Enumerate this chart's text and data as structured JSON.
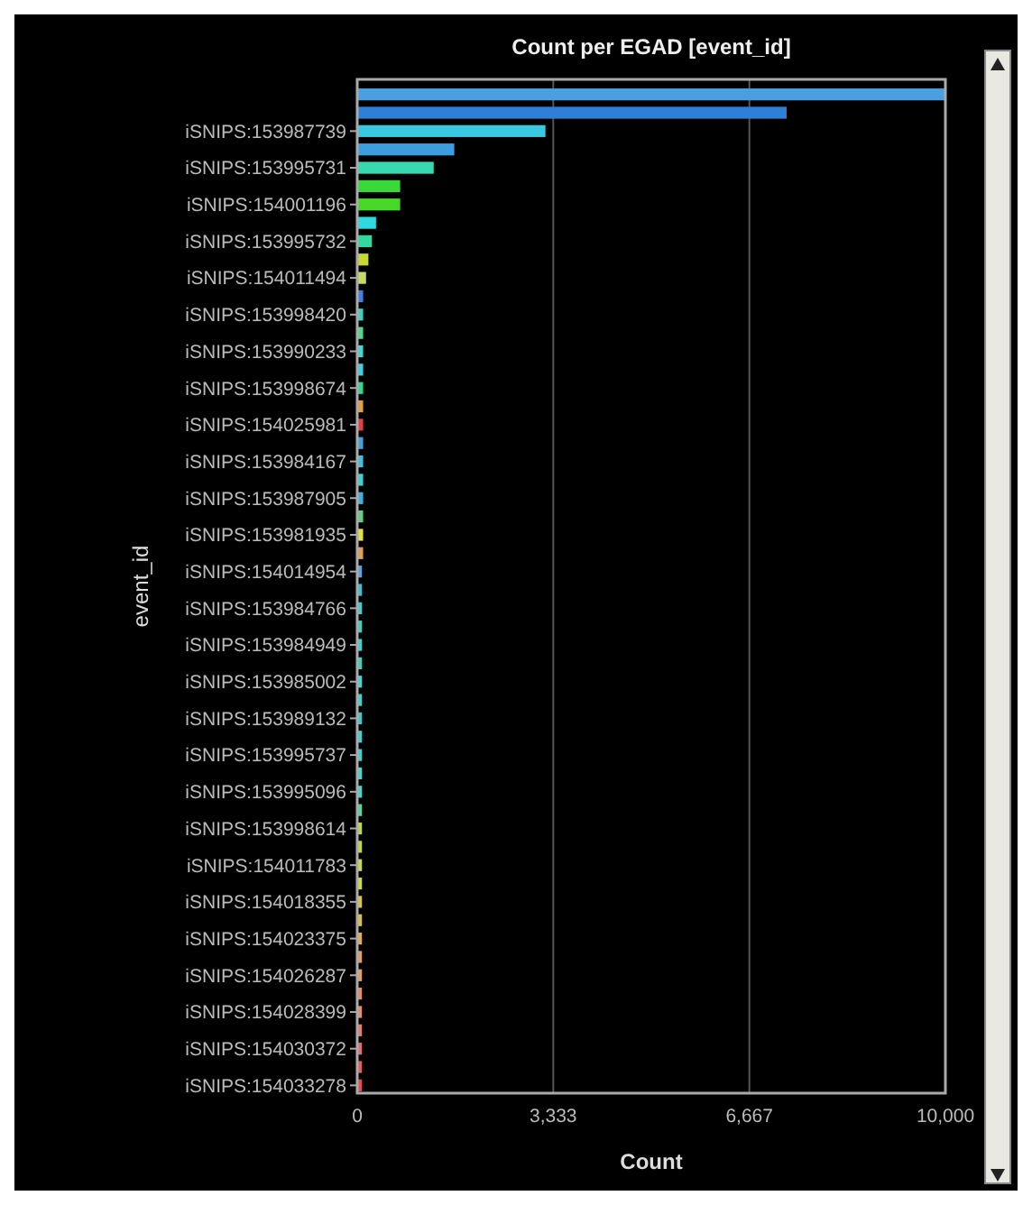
{
  "chart_data": {
    "type": "bar",
    "orientation": "horizontal",
    "title": "Count per EGAD [event_id]",
    "xlabel": "Count",
    "ylabel": "event_id",
    "categories": [
      null,
      null,
      "iSNIPS:153987739",
      null,
      "iSNIPS:153995731",
      null,
      "iSNIPS:154001196",
      null,
      "iSNIPS:153995732",
      null,
      "iSNIPS:154011494",
      null,
      "iSNIPS:153998420",
      null,
      "iSNIPS:153990233",
      null,
      "iSNIPS:153998674",
      null,
      "iSNIPS:154025981",
      null,
      "iSNIPS:153984167",
      null,
      "iSNIPS:153987905",
      null,
      "iSNIPS:153981935",
      null,
      "iSNIPS:154014954",
      null,
      "iSNIPS:153984766",
      null,
      "iSNIPS:153984949",
      null,
      "iSNIPS:153985002",
      null,
      "iSNIPS:153989132",
      null,
      "iSNIPS:153995737",
      null,
      "iSNIPS:153995096",
      null,
      "iSNIPS:153998614",
      null,
      "iSNIPS:154011783",
      null,
      "iSNIPS:154018355",
      null,
      "iSNIPS:154023375",
      null,
      "iSNIPS:154026287",
      null,
      "iSNIPS:154028399",
      null,
      "iSNIPS:154030372",
      null,
      "iSNIPS:154033278"
    ],
    "values": [
      10000,
      7300,
      3200,
      1650,
      1300,
      730,
      730,
      320,
      250,
      190,
      150,
      100,
      100,
      100,
      100,
      100,
      100,
      100,
      100,
      100,
      100,
      100,
      100,
      100,
      100,
      100,
      80,
      80,
      80,
      80,
      80,
      80,
      80,
      80,
      80,
      80,
      80,
      80,
      80,
      80,
      80,
      80,
      80,
      80,
      80,
      80,
      80,
      80,
      80,
      80,
      80,
      80,
      80,
      80,
      80
    ],
    "colors": [
      "#4a9fe0",
      "#2f7fd8",
      "#3ac8e0",
      "#3a9ee0",
      "#3ad8b0",
      "#38d838",
      "#48d828",
      "#30d8e0",
      "#30d8a0",
      "#c8d830",
      "#c8d860",
      "#4080e0",
      "#40d0c0",
      "#50d890",
      "#40d8d0",
      "#40d0e0",
      "#30d890",
      "#e0a040",
      "#e04040",
      "#40a0e0",
      "#40c0e0",
      "#40d0d0",
      "#40b0e0",
      "#60d080",
      "#e0e040",
      "#e0a050",
      "#60a0e0",
      "#40c0d0",
      "#40d0d0",
      "#40d0c0",
      "#40d0d0",
      "#40d0c0",
      "#40d8d0",
      "#40d0d0",
      "#40c8c8",
      "#40d0d0",
      "#40d0d0",
      "#40d8d0",
      "#40d8d0",
      "#50d8a0",
      "#c0d840",
      "#c0d840",
      "#d0d840",
      "#d0d840",
      "#d8c840",
      "#d8c040",
      "#e0b050",
      "#e0a060",
      "#e0a060",
      "#e09060",
      "#e09070",
      "#e08070",
      "#e07070",
      "#e06060",
      "#e05050"
    ],
    "xlim": [
      0,
      10000
    ],
    "xticks": [
      0,
      {
        "value": 3333,
        "label": "3,333"
      },
      {
        "value": 6667,
        "label": "6,667"
      },
      {
        "value": 10000,
        "label": "10,000"
      }
    ],
    "grid": "x"
  }
}
